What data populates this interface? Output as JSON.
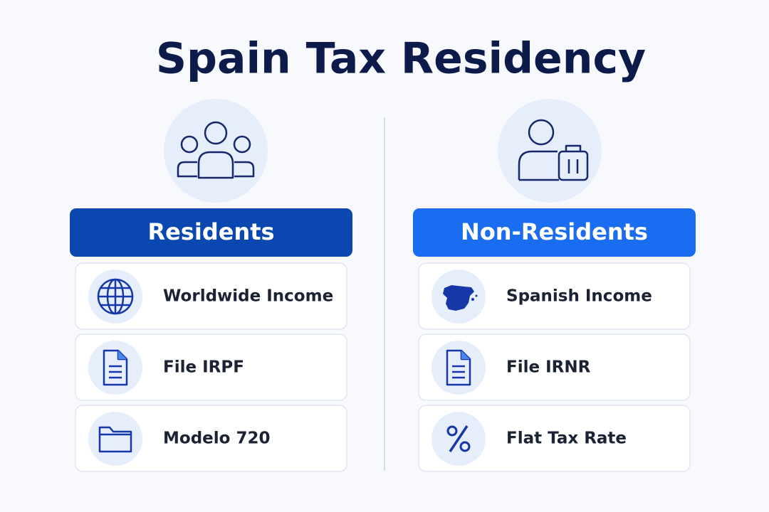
{
  "title": "Spain Tax Residency",
  "columns": [
    {
      "heading": "Residents",
      "items": [
        {
          "label": "Worldwide Income"
        },
        {
          "label": "File IRPF"
        },
        {
          "label": "Modelo 720"
        }
      ]
    },
    {
      "heading": "Non-Residents",
      "items": [
        {
          "label": "Spanish Income"
        },
        {
          "label": "File IRNR"
        },
        {
          "label": "Flat Tax Rate"
        }
      ]
    }
  ]
}
